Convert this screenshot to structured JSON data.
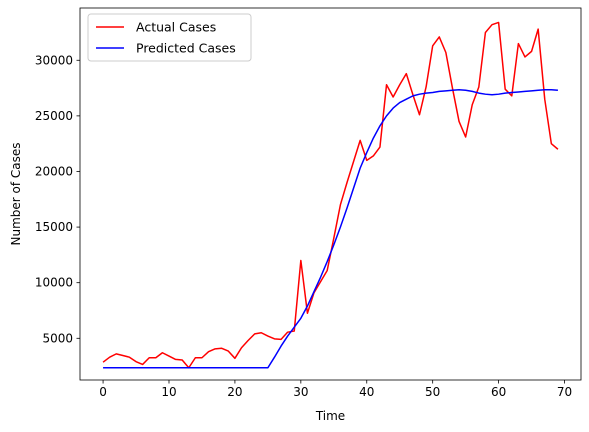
{
  "chart_data": {
    "type": "line",
    "title": "",
    "xlabel": "Time",
    "ylabel": "Number of Cases",
    "xlim": [
      -3.5,
      72.5
    ],
    "ylim": [
      1250,
      34700
    ],
    "xticks": [
      0,
      10,
      20,
      30,
      40,
      50,
      60,
      70
    ],
    "yticks": [
      5000,
      10000,
      15000,
      20000,
      25000,
      30000
    ],
    "grid": false,
    "legend": "top-left",
    "x": [
      0,
      1,
      2,
      3,
      4,
      5,
      6,
      7,
      8,
      9,
      10,
      11,
      12,
      13,
      14,
      15,
      16,
      17,
      18,
      19,
      20,
      21,
      22,
      23,
      24,
      25,
      26,
      27,
      28,
      29,
      30,
      31,
      32,
      33,
      34,
      35,
      36,
      37,
      38,
      39,
      40,
      41,
      42,
      43,
      44,
      45,
      46,
      47,
      48,
      49,
      50,
      51,
      52,
      53,
      54,
      55,
      56,
      57,
      58,
      59,
      60,
      61,
      62,
      63,
      64,
      65,
      66,
      67,
      68,
      69
    ],
    "series": [
      {
        "name": "Actual Cases",
        "color": "#ff0000",
        "values": [
          2850,
          3300,
          3600,
          3450,
          3300,
          2900,
          2650,
          3250,
          3250,
          3700,
          3400,
          3100,
          3050,
          2350,
          3250,
          3250,
          3800,
          4050,
          4100,
          3850,
          3200,
          4150,
          4800,
          5400,
          5500,
          5200,
          4950,
          4900,
          5550,
          5650,
          12000,
          7250,
          9100,
          10100,
          11100,
          14000,
          17000,
          19000,
          20900,
          22800,
          21000,
          21400,
          22200,
          27800,
          26700,
          27800,
          28800,
          26900,
          25100,
          27600,
          31300,
          32100,
          30700,
          27500,
          24500,
          23100,
          26000,
          27600,
          32500,
          33200,
          33400,
          27400,
          26800,
          31500,
          30300,
          30800,
          32800,
          26500,
          22500,
          22000
        ]
      },
      {
        "name": "Predicted Cases",
        "color": "#0000ff",
        "values": [
          2350,
          2350,
          2350,
          2350,
          2350,
          2350,
          2350,
          2350,
          2350,
          2350,
          2350,
          2350,
          2350,
          2350,
          2350,
          2350,
          2350,
          2350,
          2350,
          2350,
          2350,
          2350,
          2350,
          2350,
          2350,
          2350,
          3300,
          4300,
          5200,
          6000,
          6800,
          7900,
          9200,
          10500,
          11900,
          13400,
          15000,
          16700,
          18500,
          20300,
          21700,
          23000,
          24100,
          25000,
          25700,
          26200,
          26500,
          26800,
          26950,
          27050,
          27100,
          27200,
          27250,
          27300,
          27350,
          27300,
          27200,
          27050,
          26950,
          26900,
          26950,
          27050,
          27100,
          27150,
          27200,
          27250,
          27300,
          27350,
          27350,
          27300
        ]
      }
    ]
  }
}
